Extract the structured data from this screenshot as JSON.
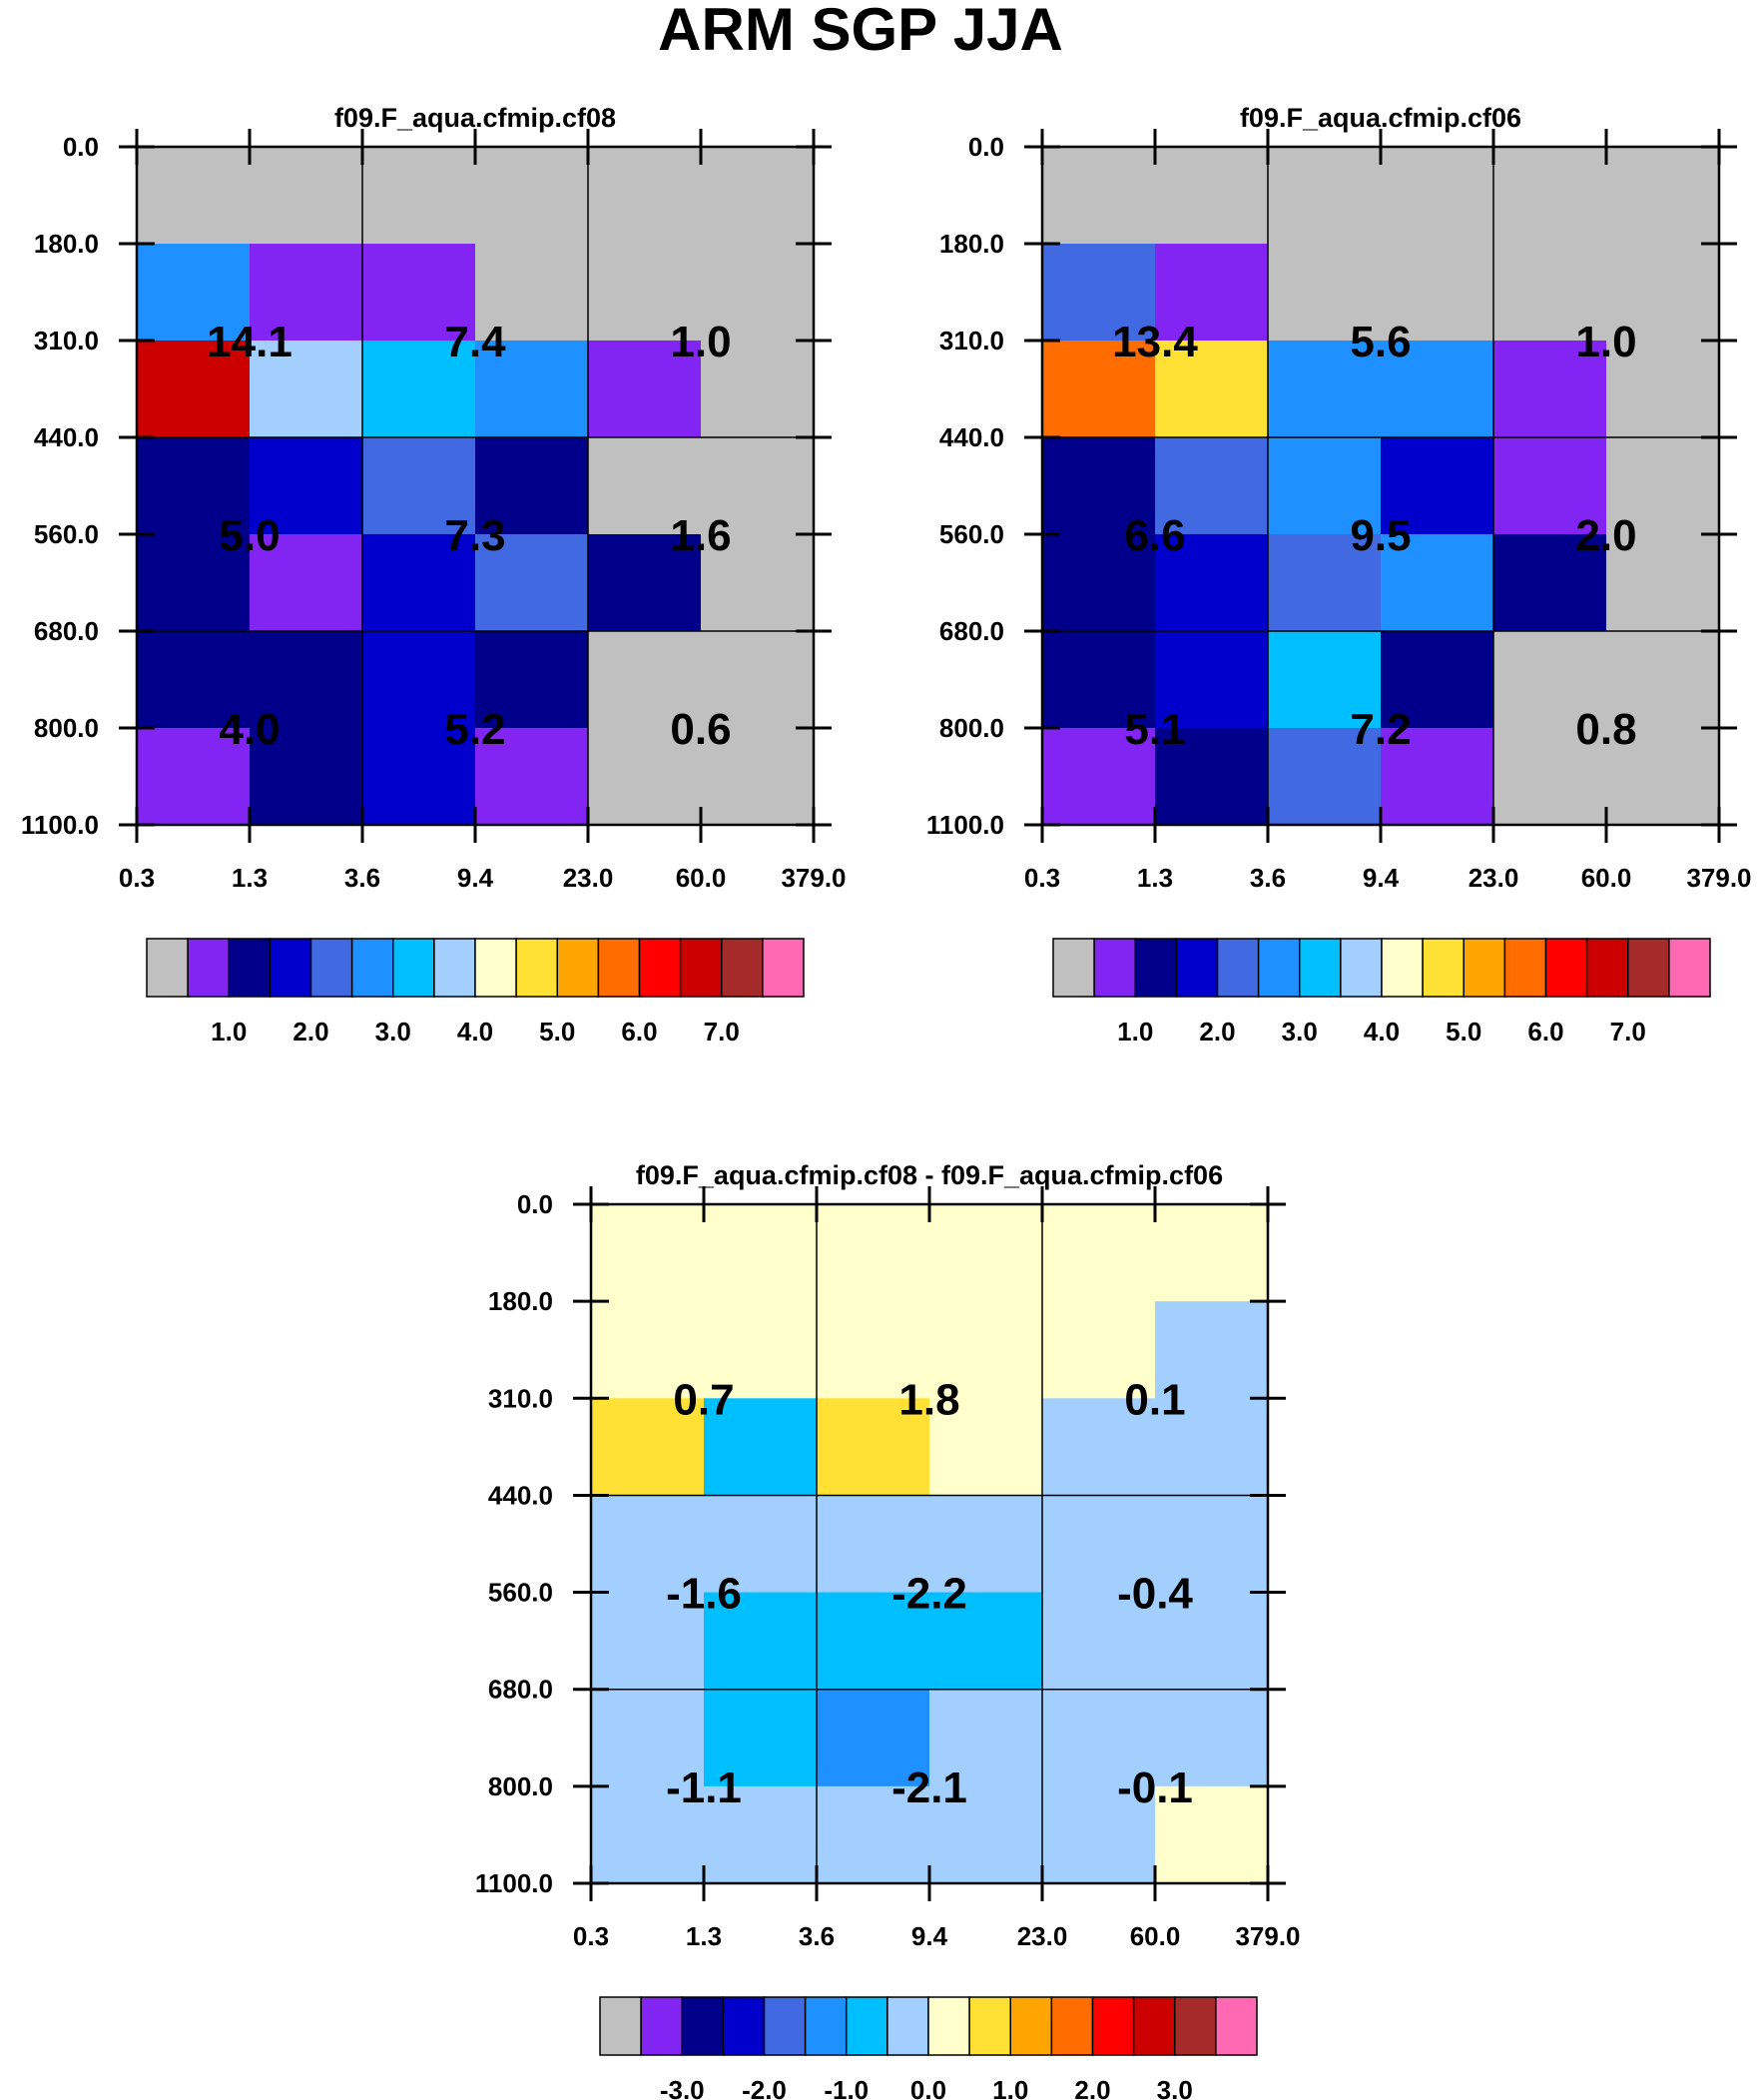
{
  "title": "ARM SGP JJA",
  "colors": {
    "G": "#c0c0c0",
    "P": "#8224f2",
    "N": "#00008b",
    "B": "#0000cd",
    "R": "#4169e1",
    "D": "#1e90ff",
    "S": "#00bfff",
    "L": "#a2cffe",
    "W": "#ffffcc",
    "Y": "#ffe135",
    "O": "#ffa500",
    "Q": "#ff6c00",
    "E": "#ff0000",
    "C": "#cd0000",
    "M": "#a52a2a",
    "K": "#ff69b4"
  },
  "legend_order": [
    "G",
    "P",
    "N",
    "B",
    "R",
    "D",
    "S",
    "L",
    "W",
    "Y",
    "O",
    "Q",
    "E",
    "C",
    "M",
    "K"
  ],
  "chart_data": [
    {
      "type": "heatmap",
      "title": "f09.F_aqua.cfmip.cf08",
      "x_ticks": [
        "0.3",
        "1.3",
        "3.6",
        "9.4",
        "23.0",
        "60.0",
        "379.0"
      ],
      "y_ticks": [
        "0.0",
        "180.0",
        "310.0",
        "440.0",
        "560.0",
        "680.0",
        "800.0",
        "1100.0"
      ],
      "cells": [
        [
          "G",
          "G",
          "G",
          "G",
          "G",
          "G"
        ],
        [
          "D",
          "P",
          "P",
          "G",
          "G",
          "G"
        ],
        [
          "C",
          "L",
          "S",
          "D",
          "P",
          "G"
        ],
        [
          "N",
          "B",
          "R",
          "N",
          "G",
          "G"
        ],
        [
          "N",
          "P",
          "B",
          "R",
          "N",
          "G"
        ],
        [
          "N",
          "N",
          "B",
          "N",
          "G",
          "G"
        ],
        [
          "P",
          "N",
          "B",
          "P",
          "G",
          "G"
        ]
      ],
      "block_values": [
        [
          "14.1",
          "7.4",
          "1.0"
        ],
        [
          "5.0",
          "7.3",
          "1.6"
        ],
        [
          "4.0",
          "5.2",
          "0.6"
        ]
      ],
      "legend_labels": [
        "1.0",
        "2.0",
        "3.0",
        "4.0",
        "5.0",
        "6.0",
        "7.0"
      ]
    },
    {
      "type": "heatmap",
      "title": "f09.F_aqua.cfmip.cf06",
      "x_ticks": [
        "0.3",
        "1.3",
        "3.6",
        "9.4",
        "23.0",
        "60.0",
        "379.0"
      ],
      "y_ticks": [
        "0.0",
        "180.0",
        "310.0",
        "440.0",
        "560.0",
        "680.0",
        "800.0",
        "1100.0"
      ],
      "cells": [
        [
          "G",
          "G",
          "G",
          "G",
          "G",
          "G"
        ],
        [
          "R",
          "P",
          "G",
          "G",
          "G",
          "G"
        ],
        [
          "Q",
          "Y",
          "D",
          "D",
          "P",
          "G"
        ],
        [
          "N",
          "R",
          "D",
          "B",
          "P",
          "G"
        ],
        [
          "N",
          "B",
          "R",
          "D",
          "N",
          "G"
        ],
        [
          "N",
          "B",
          "S",
          "N",
          "G",
          "G"
        ],
        [
          "P",
          "N",
          "R",
          "P",
          "G",
          "G"
        ]
      ],
      "block_values": [
        [
          "13.4",
          "5.6",
          "1.0"
        ],
        [
          "6.6",
          "9.5",
          "2.0"
        ],
        [
          "5.1",
          "7.2",
          "0.8"
        ]
      ],
      "legend_labels": [
        "1.0",
        "2.0",
        "3.0",
        "4.0",
        "5.0",
        "6.0",
        "7.0"
      ]
    },
    {
      "type": "heatmap",
      "title": "f09.F_aqua.cfmip.cf08 - f09.F_aqua.cfmip.cf06",
      "x_ticks": [
        "0.3",
        "1.3",
        "3.6",
        "9.4",
        "23.0",
        "60.0",
        "379.0"
      ],
      "y_ticks": [
        "0.0",
        "180.0",
        "310.0",
        "440.0",
        "560.0",
        "680.0",
        "800.0",
        "1100.0"
      ],
      "cells": [
        [
          "W",
          "W",
          "W",
          "W",
          "W",
          "W"
        ],
        [
          "W",
          "W",
          "W",
          "W",
          "W",
          "L"
        ],
        [
          "Y",
          "S",
          "Y",
          "W",
          "L",
          "L"
        ],
        [
          "L",
          "L",
          "L",
          "L",
          "L",
          "L"
        ],
        [
          "L",
          "S",
          "S",
          "S",
          "L",
          "L"
        ],
        [
          "L",
          "S",
          "D",
          "L",
          "L",
          "L"
        ],
        [
          "L",
          "L",
          "L",
          "L",
          "L",
          "W"
        ]
      ],
      "block_values": [
        [
          "0.7",
          "1.8",
          "0.1"
        ],
        [
          "-1.6",
          "-2.2",
          "-0.4"
        ],
        [
          "-1.1",
          "-2.1",
          "-0.1"
        ]
      ],
      "legend_labels": [
        "-3.0",
        "-2.0",
        "-1.0",
        "0.0",
        "1.0",
        "2.0",
        "3.0"
      ]
    }
  ]
}
